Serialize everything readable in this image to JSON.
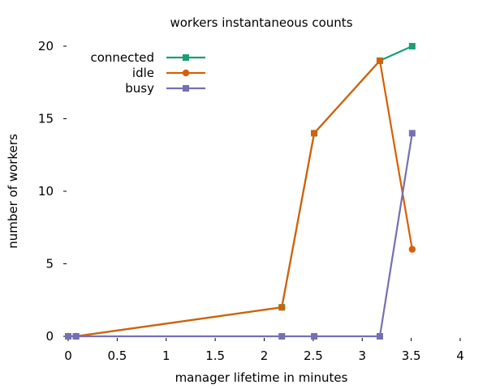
{
  "chart_data": {
    "type": "line",
    "title": "workers instantaneous counts",
    "xlabel": "manager lifetime in minutes",
    "ylabel": "number of workers",
    "xlim": [
      0,
      4
    ],
    "ylim": [
      0,
      20
    ],
    "xticks": [
      "0",
      "0.5",
      "1",
      "1.5",
      "2",
      "2.5",
      "3",
      "3.5",
      "4"
    ],
    "yticks": [
      "0",
      "5",
      "10",
      "15",
      "20"
    ],
    "grid": false,
    "legend_position": "top-left",
    "series": [
      {
        "name": "connected",
        "color": "#1b9e77",
        "marker": "square",
        "x": [
          0.0,
          0.08,
          2.18,
          2.51,
          3.18,
          3.51
        ],
        "y": [
          0,
          0,
          2,
          14,
          19,
          20
        ]
      },
      {
        "name": "idle",
        "color": "#d95f02",
        "marker": "circle",
        "x": [
          0.0,
          0.08,
          2.18,
          2.51,
          3.18,
          3.51
        ],
        "y": [
          0,
          0,
          2,
          14,
          19,
          6
        ]
      },
      {
        "name": "busy",
        "color": "#7570b3",
        "marker": "square",
        "x": [
          0.0,
          0.08,
          2.18,
          2.51,
          3.18,
          3.51
        ],
        "y": [
          0,
          0,
          0,
          0,
          0,
          14
        ]
      }
    ]
  }
}
